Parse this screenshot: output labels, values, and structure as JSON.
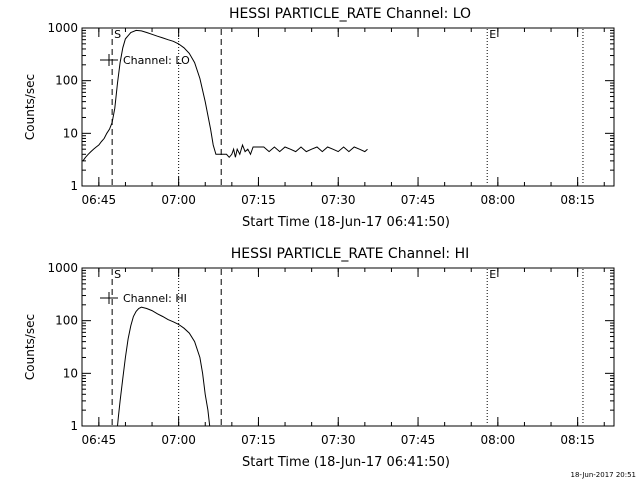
{
  "footer": {
    "timestamp": "18-Jun-2017 20:51"
  },
  "chart_data": [
    {
      "type": "line",
      "title": "HESSI PARTICLE_RATE Channel: LO",
      "xlabel": "Start Time (18-Jun-17 06:41:50)",
      "ylabel": "Counts/sec",
      "y_scale": "log",
      "ylim": [
        1,
        1000
      ],
      "y_ticks": [
        {
          "value": 1,
          "label": "1"
        },
        {
          "value": 10,
          "label": "10"
        },
        {
          "value": 100,
          "label": "100"
        },
        {
          "value": 1000,
          "label": "1000"
        }
      ],
      "xlim": [
        "06:41:50",
        "08:21:50"
      ],
      "x_ticks": [
        "06:45",
        "07:00",
        "07:15",
        "07:30",
        "07:45",
        "08:00",
        "08:15"
      ],
      "legend": {
        "label": "Channel: LO",
        "placement": "top-left"
      },
      "markers": [
        {
          "time": "06:47:30",
          "label": "S",
          "style": "dashed"
        },
        {
          "time": "07:00:00",
          "label": "",
          "style": "dotted"
        },
        {
          "time": "07:08:00",
          "label": "",
          "style": "dashed"
        },
        {
          "time": "07:58:00",
          "label": "E",
          "style": "dotted"
        },
        {
          "time": "08:16:00",
          "label": "",
          "style": "dotted"
        }
      ],
      "series": [
        {
          "x": [
            "06:42:00",
            "06:42:30",
            "06:43:00",
            "06:43:30",
            "06:44:00",
            "06:44:30",
            "06:45:00",
            "06:45:30",
            "06:46:00",
            "06:46:30",
            "06:47:00",
            "06:47:30",
            "06:48:00",
            "06:48:30",
            "06:49:00",
            "06:49:30",
            "06:50:00",
            "06:51:00",
            "06:52:00",
            "06:53:00",
            "06:54:00",
            "06:55:00",
            "06:56:00",
            "06:57:00",
            "06:58:00",
            "06:59:00",
            "07:00:00",
            "07:01:00",
            "07:02:00",
            "07:03:00",
            "07:04:00",
            "07:05:00",
            "07:06:00",
            "07:06:30",
            "07:07:00",
            "07:08:00",
            "07:09:00",
            "07:09:30",
            "07:10:00",
            "07:10:20",
            "07:10:40",
            "07:11:00",
            "07:11:30",
            "07:12:00",
            "07:12:30",
            "07:13:00",
            "07:13:30",
            "07:14:00",
            "07:15:00",
            "07:16:00",
            "07:17:00",
            "07:18:00",
            "07:19:00",
            "07:20:00",
            "07:21:00",
            "07:22:00",
            "07:23:00",
            "07:24:00",
            "07:25:00",
            "07:26:00",
            "07:27:00",
            "07:28:00",
            "07:29:00",
            "07:30:00",
            "07:31:00",
            "07:32:00",
            "07:33:00",
            "07:34:00",
            "07:35:00",
            "07:35:30"
          ],
          "y": [
            3,
            3.5,
            4,
            4.5,
            5,
            5.5,
            6,
            7,
            8,
            10,
            12,
            16,
            30,
            90,
            220,
            420,
            620,
            820,
            900,
            880,
            820,
            760,
            700,
            650,
            600,
            560,
            500,
            420,
            330,
            220,
            110,
            40,
            12,
            6,
            4,
            4,
            4,
            3.5,
            4,
            5,
            3.5,
            5,
            4,
            6,
            4.5,
            5,
            4,
            5.5,
            5.5,
            5.5,
            4.5,
            5.5,
            4.5,
            5.5,
            5,
            4.5,
            5.5,
            4.5,
            5,
            5.5,
            4.5,
            5.5,
            5,
            4.5,
            5.5,
            4.5,
            5.5,
            5,
            4.5,
            5
          ]
        }
      ]
    },
    {
      "type": "line",
      "title": "HESSI PARTICLE_RATE Channel: HI",
      "xlabel": "Start Time (18-Jun-17 06:41:50)",
      "ylabel": "Counts/sec",
      "y_scale": "log",
      "ylim": [
        1,
        1000
      ],
      "y_ticks": [
        {
          "value": 1,
          "label": "1"
        },
        {
          "value": 10,
          "label": "10"
        },
        {
          "value": 100,
          "label": "100"
        },
        {
          "value": 1000,
          "label": "1000"
        }
      ],
      "xlim": [
        "06:41:50",
        "08:21:50"
      ],
      "x_ticks": [
        "06:45",
        "07:00",
        "07:15",
        "07:30",
        "07:45",
        "08:00",
        "08:15"
      ],
      "legend": {
        "label": "Channel: HI",
        "placement": "top-left"
      },
      "markers": [
        {
          "time": "06:47:30",
          "label": "S",
          "style": "dashed"
        },
        {
          "time": "07:00:00",
          "label": "",
          "style": "dotted"
        },
        {
          "time": "07:08:00",
          "label": "",
          "style": "dashed"
        },
        {
          "time": "07:58:00",
          "label": "E",
          "style": "dotted"
        },
        {
          "time": "08:16:00",
          "label": "",
          "style": "dotted"
        }
      ],
      "series": [
        {
          "x": [
            "06:48:30",
            "06:48:40",
            "06:49:00",
            "06:49:30",
            "06:50:00",
            "06:50:30",
            "06:51:00",
            "06:51:30",
            "06:52:00",
            "06:52:30",
            "06:53:00",
            "06:54:00",
            "06:55:00",
            "06:56:00",
            "06:57:00",
            "06:58:00",
            "06:59:00",
            "07:00:00",
            "07:01:00",
            "07:02:00",
            "07:03:00",
            "07:04:00",
            "07:04:30",
            "07:05:00",
            "07:05:30",
            "07:05:50"
          ],
          "y": [
            1,
            1.5,
            3,
            8,
            20,
            45,
            80,
            120,
            150,
            170,
            180,
            170,
            155,
            135,
            120,
            105,
            95,
            85,
            72,
            58,
            40,
            20,
            10,
            4,
            2,
            1
          ]
        }
      ]
    }
  ]
}
